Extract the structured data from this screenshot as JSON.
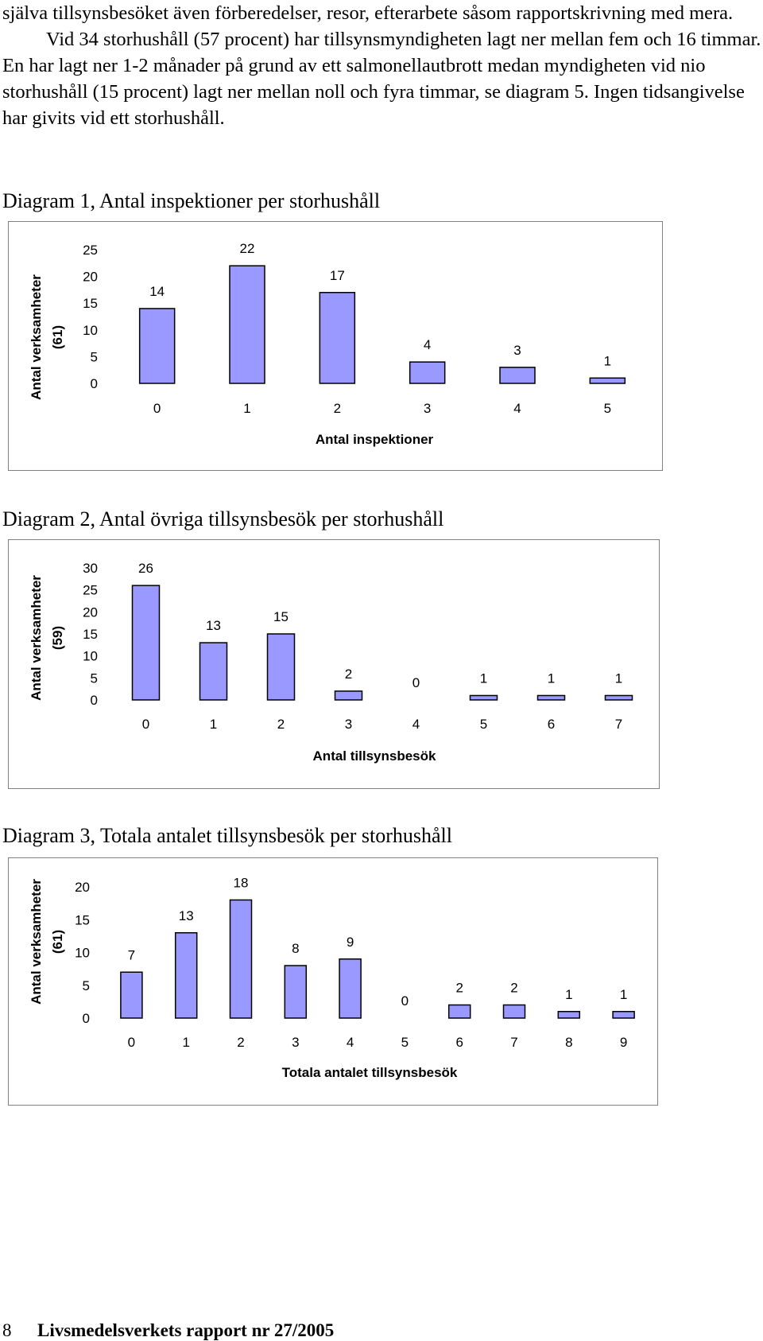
{
  "text": {
    "paragraph1": "själva tillsynsbesöket även förberedelser, resor, efterarbete såsom rapportskrivning med mera.",
    "paragraph2": "Vid 34 storhushåll (57 procent) har tillsynsmyndigheten lagt ner mellan fem och 16 timmar. En har lagt ner 1-2 månader på grund av ett salmonellautbrott medan myndigheten vid nio storhushåll (15 procent) lagt ner mellan noll och fyra timmar, se diagram 5. Ingen tidsangivelse har givits vid ett storhushåll."
  },
  "chart_data": [
    {
      "type": "bar",
      "title": "Diagram 1, Antal inspektioner per storhushåll",
      "categories": [
        "0",
        "1",
        "2",
        "3",
        "4",
        "5"
      ],
      "values": [
        14,
        22,
        17,
        4,
        3,
        1
      ],
      "data_labels": [
        "14",
        "22",
        "17",
        "4",
        "3",
        "1"
      ],
      "xlabel": "Antal inspektioner",
      "ylabel_line1": "Antal verksamheter",
      "ylabel_line2": "(61)",
      "yticks": [
        "0",
        "5",
        "10",
        "15",
        "20",
        "25"
      ],
      "ylim": [
        0,
        25
      ],
      "grid": false,
      "bar_color": "#9999ff"
    },
    {
      "type": "bar",
      "title": "Diagram 2, Antal övriga tillsynsbesök per storhushåll",
      "categories": [
        "0",
        "1",
        "2",
        "3",
        "4",
        "5",
        "6",
        "7"
      ],
      "values": [
        26,
        13,
        15,
        2,
        0,
        1,
        1,
        1
      ],
      "data_labels": [
        "26",
        "13",
        "15",
        "2",
        "0",
        "1",
        "1",
        "1"
      ],
      "xlabel": "Antal tillsynsbesök",
      "ylabel_line1": "Antal verksamheter",
      "ylabel_line2": "(59)",
      "yticks": [
        "0",
        "5",
        "10",
        "15",
        "20",
        "25",
        "30"
      ],
      "ylim": [
        0,
        30
      ],
      "grid": false,
      "bar_color": "#9999ff"
    },
    {
      "type": "bar",
      "title": "Diagram 3, Totala antalet tillsynsbesök per storhushåll",
      "categories": [
        "0",
        "1",
        "2",
        "3",
        "4",
        "5",
        "6",
        "7",
        "8",
        "9"
      ],
      "values": [
        7,
        13,
        18,
        8,
        9,
        0,
        2,
        2,
        1,
        1
      ],
      "data_labels": [
        "7",
        "13",
        "18",
        "8",
        "9",
        "0",
        "2",
        "2",
        "1",
        "1"
      ],
      "xlabel": "Totala antalet tillsynsbesök",
      "ylabel_line1": "Antal verksamheter",
      "ylabel_line2": "(61)",
      "yticks": [
        "0",
        "5",
        "10",
        "15",
        "20"
      ],
      "ylim": [
        0,
        20
      ],
      "grid": false,
      "bar_color": "#9999ff"
    }
  ],
  "footer": {
    "page_number": "8",
    "report": "Livsmedelsverkets rapport nr 27/2005"
  }
}
